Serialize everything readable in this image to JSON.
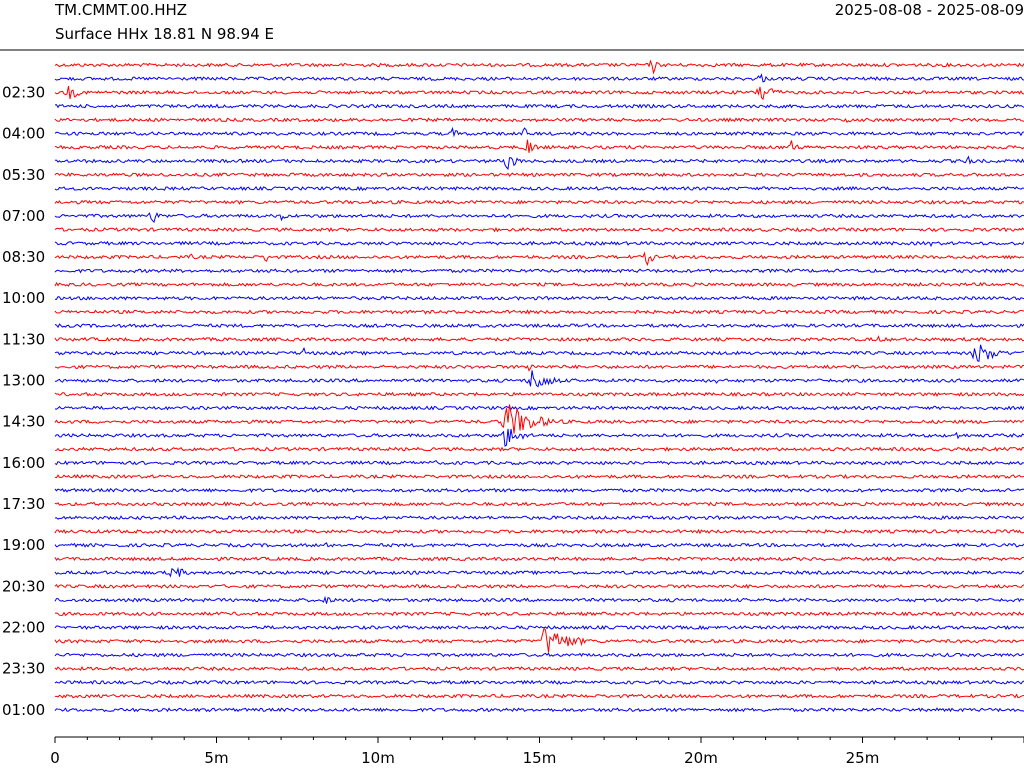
{
  "header": {
    "station": "TM.CMMT.00.HHZ",
    "location": "Surface HHx  18.81 N 98.94 E",
    "date_range": "2025-08-08 - 2025-08-09"
  },
  "chart_data": {
    "type": "line",
    "title": "",
    "xlabel": "",
    "ylabel": "",
    "x_tick_labels": [
      "0",
      "5m",
      "10m",
      "15m",
      "20m",
      "25m"
    ],
    "x_ticks_minutes": [
      0,
      5,
      10,
      15,
      20,
      25
    ],
    "x_range_minutes": [
      0,
      30
    ],
    "y_tick_labels": [
      "02:30",
      "04:00",
      "05:30",
      "07:00",
      "08:30",
      "10:00",
      "11:30",
      "13:00",
      "14:30",
      "16:00",
      "17:30",
      "19:00",
      "20:30",
      "22:00",
      "23:30",
      "01:00"
    ],
    "trace_count": 48,
    "trace_minutes": 30,
    "colors": [
      "#ff0000",
      "#0000ff"
    ],
    "grid": false,
    "events": [
      {
        "trace": 0,
        "minute": 18.5,
        "amp": 12,
        "dur": 0.3
      },
      {
        "trace": 1,
        "minute": 21.8,
        "amp": 10,
        "dur": 0.4
      },
      {
        "trace": 2,
        "minute": 0.4,
        "amp": 8,
        "dur": 1.0
      },
      {
        "trace": 2,
        "minute": 21.8,
        "amp": 14,
        "dur": 1.0
      },
      {
        "trace": 3,
        "minute": 4.0,
        "amp": 4,
        "dur": 0.5
      },
      {
        "trace": 4,
        "minute": 24.5,
        "amp": 4,
        "dur": 0.6
      },
      {
        "trace": 5,
        "minute": 12.3,
        "amp": 6,
        "dur": 0.6
      },
      {
        "trace": 5,
        "minute": 14.5,
        "amp": 8,
        "dur": 0.4
      },
      {
        "trace": 6,
        "minute": 14.6,
        "amp": 12,
        "dur": 0.6
      },
      {
        "trace": 6,
        "minute": 22.8,
        "amp": 8,
        "dur": 0.5
      },
      {
        "trace": 7,
        "minute": 13.9,
        "amp": 14,
        "dur": 0.8
      },
      {
        "trace": 7,
        "minute": 28.2,
        "amp": 6,
        "dur": 0.8
      },
      {
        "trace": 8,
        "minute": 8.2,
        "amp": 3,
        "dur": 0.3
      },
      {
        "trace": 11,
        "minute": 3.0,
        "amp": 10,
        "dur": 0.5
      },
      {
        "trace": 11,
        "minute": 7.0,
        "amp": 6,
        "dur": 0.4
      },
      {
        "trace": 12,
        "minute": 2.3,
        "amp": 4,
        "dur": 0.6
      },
      {
        "trace": 13,
        "minute": 27.1,
        "amp": 5,
        "dur": 0.2
      },
      {
        "trace": 14,
        "minute": 4.2,
        "amp": 5,
        "dur": 0.4
      },
      {
        "trace": 14,
        "minute": 6.5,
        "amp": 7,
        "dur": 0.4
      },
      {
        "trace": 14,
        "minute": 18.3,
        "amp": 12,
        "dur": 0.5
      },
      {
        "trace": 20,
        "minute": 25.5,
        "amp": 10,
        "dur": 0.2
      },
      {
        "trace": 21,
        "minute": 7.7,
        "amp": 8,
        "dur": 0.2
      },
      {
        "trace": 21,
        "minute": 28.5,
        "amp": 14,
        "dur": 1.5
      },
      {
        "trace": 22,
        "minute": 14.7,
        "amp": 16,
        "dur": 0.2
      },
      {
        "trace": 23,
        "minute": 14.7,
        "amp": 14,
        "dur": 1.5
      },
      {
        "trace": 23,
        "minute": 20.3,
        "amp": 5,
        "dur": 0.8
      },
      {
        "trace": 26,
        "minute": 13.9,
        "amp": 22,
        "dur": 2.2
      },
      {
        "trace": 27,
        "minute": 13.9,
        "amp": 14,
        "dur": 1.2
      },
      {
        "trace": 27,
        "minute": 27.9,
        "amp": 5,
        "dur": 0.5
      },
      {
        "trace": 29,
        "minute": 11.8,
        "amp": 6,
        "dur": 0.2
      },
      {
        "trace": 35,
        "minute": 8.4,
        "amp": 3,
        "dur": 0.5
      },
      {
        "trace": 37,
        "minute": 3.6,
        "amp": 10,
        "dur": 0.9
      },
      {
        "trace": 39,
        "minute": 8.3,
        "amp": 5,
        "dur": 1.0
      },
      {
        "trace": 40,
        "minute": 14.5,
        "amp": 3,
        "dur": 0.4
      },
      {
        "trace": 42,
        "minute": 15.1,
        "amp": 18,
        "dur": 2.0
      },
      {
        "trace": 42,
        "minute": 9.3,
        "amp": 3,
        "dur": 0.4
      },
      {
        "trace": 42,
        "minute": 12.8,
        "amp": 3,
        "dur": 0.3
      },
      {
        "trace": 47,
        "minute": 27.4,
        "amp": 3,
        "dur": 0.2
      }
    ]
  }
}
